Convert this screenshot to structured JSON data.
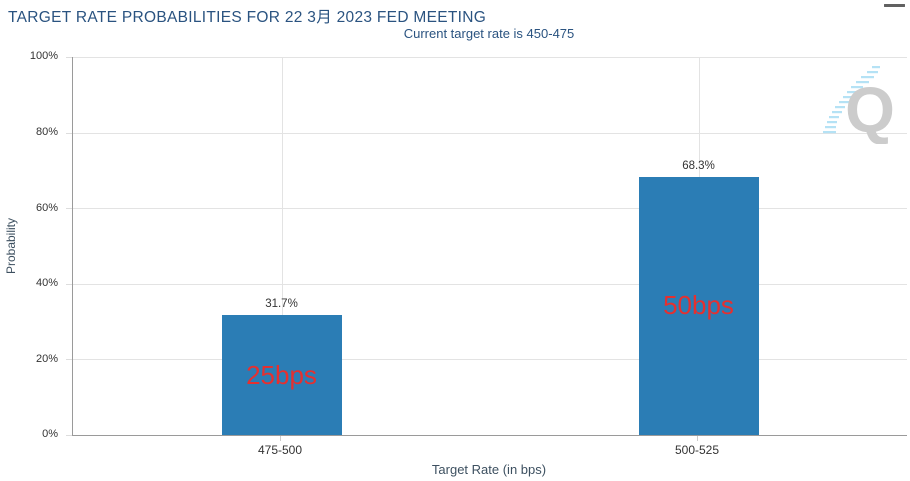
{
  "header": {
    "title": "TARGET RATE PROBABILITIES FOR 22 3月 2023 FED MEETING",
    "subtitle": "Current target rate is 450-475"
  },
  "menu": {
    "icon": "hamburger-icon"
  },
  "watermark": {
    "letter": "Q",
    "icon": "quikstrike-logo"
  },
  "chart_data": {
    "type": "bar",
    "title": "TARGET RATE PROBABILITIES FOR 22 3月 2023 FED MEETING",
    "subtitle": "Current target rate is 450-475",
    "categories": [
      "475-500",
      "500-525"
    ],
    "values": [
      31.7,
      68.3
    ],
    "value_labels": [
      "31.7%",
      "68.3%"
    ],
    "bar_annotations": [
      "25bps",
      "50bps"
    ],
    "xlabel": "Target Rate (in bps)",
    "ylabel": "Probability",
    "ylim": [
      0,
      100
    ],
    "ytick_labels": [
      "100%",
      "80%",
      "60%",
      "40%",
      "20%",
      "0%"
    ],
    "grid": true,
    "legend": "none",
    "colors": {
      "bar": "#2b7db5",
      "annotation": "#e53030",
      "title": "#2a5380",
      "grid": "#e3e3e3",
      "axis": "#9a9a9a",
      "tick_label": "#333333",
      "axis_title": "#3d5060",
      "watermark_q": "#cccccc",
      "watermark_dash": "#b5e2f5"
    }
  }
}
